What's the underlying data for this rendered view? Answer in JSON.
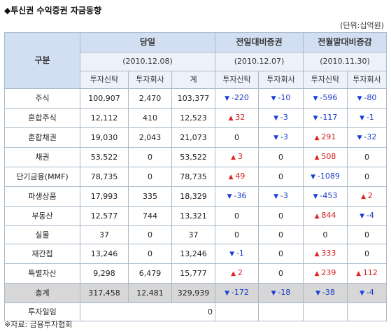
{
  "title": "◆투신권 수익증권 자금동향",
  "unit": "(단위:십억원)",
  "source": "※자료: 금융투자협회",
  "header": {
    "gubun": "구분",
    "groups": [
      {
        "name": "당일",
        "date": "(2010.12.08)"
      },
      {
        "name": "전일대비증권",
        "date": "(2010.12.07)"
      },
      {
        "name": "전월말대비증감",
        "date": "(2010.11.30)"
      }
    ],
    "subcols": [
      "투자신탁",
      "투자회사",
      "계",
      "투자신탁",
      "투자회사",
      "투자신탁",
      "투자회사"
    ]
  },
  "rows": [
    {
      "label": "주식",
      "cells": [
        {
          "v": "100,907"
        },
        {
          "v": "2,470"
        },
        {
          "v": "103,377"
        },
        {
          "v": "-220",
          "d": "down"
        },
        {
          "v": "-10",
          "d": "down"
        },
        {
          "v": "-596",
          "d": "down"
        },
        {
          "v": "-80",
          "d": "down"
        }
      ]
    },
    {
      "label": "혼합주식",
      "cells": [
        {
          "v": "12,112"
        },
        {
          "v": "410"
        },
        {
          "v": "12,523"
        },
        {
          "v": "32",
          "d": "up"
        },
        {
          "v": "-3",
          "d": "down"
        },
        {
          "v": "-117",
          "d": "down"
        },
        {
          "v": "-1",
          "d": "down"
        }
      ]
    },
    {
      "label": "혼합채권",
      "cells": [
        {
          "v": "19,030"
        },
        {
          "v": "2,043"
        },
        {
          "v": "21,073"
        },
        {
          "v": "0"
        },
        {
          "v": "-3",
          "d": "down"
        },
        {
          "v": "291",
          "d": "up"
        },
        {
          "v": "-32",
          "d": "down"
        }
      ]
    },
    {
      "label": "채권",
      "cells": [
        {
          "v": "53,522"
        },
        {
          "v": "0"
        },
        {
          "v": "53,522"
        },
        {
          "v": "3",
          "d": "up"
        },
        {
          "v": "0"
        },
        {
          "v": "508",
          "d": "up"
        },
        {
          "v": "0"
        }
      ]
    },
    {
      "label": "단기금융(MMF)",
      "cells": [
        {
          "v": "78,735"
        },
        {
          "v": "0"
        },
        {
          "v": "78,735"
        },
        {
          "v": "49",
          "d": "up"
        },
        {
          "v": "0"
        },
        {
          "v": "-1089",
          "d": "down"
        },
        {
          "v": "0"
        }
      ]
    },
    {
      "label": "파생상품",
      "cells": [
        {
          "v": "17,993"
        },
        {
          "v": "335"
        },
        {
          "v": "18,329"
        },
        {
          "v": "-36",
          "d": "down"
        },
        {
          "v": "-3",
          "d": "down"
        },
        {
          "v": "-453",
          "d": "down"
        },
        {
          "v": "2",
          "d": "up"
        }
      ]
    },
    {
      "label": "부동산",
      "cells": [
        {
          "v": "12,577"
        },
        {
          "v": "744"
        },
        {
          "v": "13,321"
        },
        {
          "v": "0"
        },
        {
          "v": "0"
        },
        {
          "v": "844",
          "d": "up"
        },
        {
          "v": "-4",
          "d": "down"
        }
      ]
    },
    {
      "label": "실물",
      "cells": [
        {
          "v": "37"
        },
        {
          "v": "0"
        },
        {
          "v": "37"
        },
        {
          "v": "0"
        },
        {
          "v": "0"
        },
        {
          "v": "0"
        },
        {
          "v": "0"
        }
      ]
    },
    {
      "label": "재간접",
      "cells": [
        {
          "v": "13,246"
        },
        {
          "v": "0"
        },
        {
          "v": "13,246"
        },
        {
          "v": "-1",
          "d": "down"
        },
        {
          "v": "0"
        },
        {
          "v": "333",
          "d": "up"
        },
        {
          "v": "0"
        }
      ]
    },
    {
      "label": "특별자산",
      "cells": [
        {
          "v": "9,298"
        },
        {
          "v": "6,479"
        },
        {
          "v": "15,777"
        },
        {
          "v": "2",
          "d": "up"
        },
        {
          "v": "0"
        },
        {
          "v": "239",
          "d": "up"
        },
        {
          "v": "112",
          "d": "up"
        }
      ]
    }
  ],
  "total": {
    "label": "총계",
    "cells": [
      {
        "v": "317,458"
      },
      {
        "v": "12,481"
      },
      {
        "v": "329,939"
      },
      {
        "v": "-172",
        "d": "down"
      },
      {
        "v": "-18",
        "d": "down"
      },
      {
        "v": "-38",
        "d": "down"
      },
      {
        "v": "-4",
        "d": "down"
      }
    ]
  },
  "investment": {
    "label": "투자일임",
    "value": "0"
  }
}
